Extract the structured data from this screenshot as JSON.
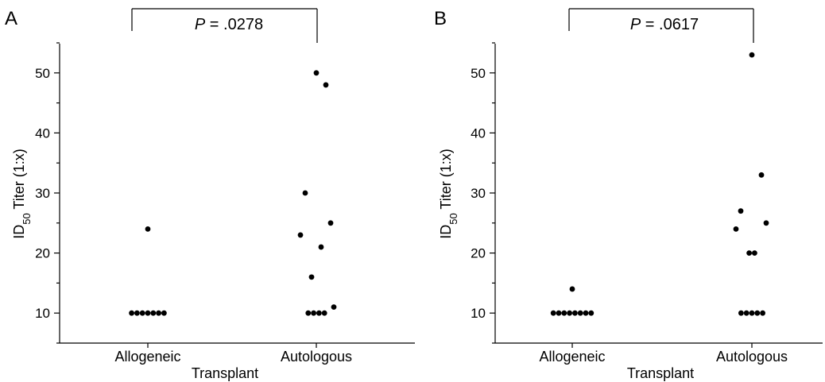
{
  "chart_data": [
    {
      "type": "scatter",
      "panel_label": "A",
      "p_value_label": "P",
      "p_value_text": " = .0278",
      "categories": [
        "Allogeneic",
        "Autologous"
      ],
      "xlabel": "Transplant",
      "ylabel": {
        "main": "ID",
        "sub": "50",
        "rest": " Titer (1:x)"
      },
      "ylim": [
        5,
        55
      ],
      "yticks": [
        10,
        20,
        30,
        40,
        50
      ],
      "grid": false,
      "legend": "none",
      "points": [
        {
          "category": "Allogeneic",
          "y": 10
        },
        {
          "category": "Allogeneic",
          "y": 10
        },
        {
          "category": "Allogeneic",
          "y": 10
        },
        {
          "category": "Allogeneic",
          "y": 10
        },
        {
          "category": "Allogeneic",
          "y": 10
        },
        {
          "category": "Allogeneic",
          "y": 10
        },
        {
          "category": "Allogeneic",
          "y": 10
        },
        {
          "category": "Allogeneic",
          "y": 24
        },
        {
          "category": "Autologous",
          "y": 50
        },
        {
          "category": "Autologous",
          "y": 48
        },
        {
          "category": "Autologous",
          "y": 30
        },
        {
          "category": "Autologous",
          "y": 25
        },
        {
          "category": "Autologous",
          "y": 23
        },
        {
          "category": "Autologous",
          "y": 21
        },
        {
          "category": "Autologous",
          "y": 16
        },
        {
          "category": "Autologous",
          "y": 11
        },
        {
          "category": "Autologous",
          "y": 10
        },
        {
          "category": "Autologous",
          "y": 10
        },
        {
          "category": "Autologous",
          "y": 10
        },
        {
          "category": "Autologous",
          "y": 10
        }
      ]
    },
    {
      "type": "scatter",
      "panel_label": "B",
      "p_value_label": "P",
      "p_value_text": " = .0617",
      "categories": [
        "Allogeneic",
        "Autologous"
      ],
      "xlabel": "Transplant",
      "ylabel": {
        "main": "ID",
        "sub": "50",
        "rest": " Titer (1:x)"
      },
      "ylim": [
        5,
        55
      ],
      "yticks": [
        10,
        20,
        30,
        40,
        50
      ],
      "grid": false,
      "legend": "none",
      "points": [
        {
          "category": "Allogeneic",
          "y": 10
        },
        {
          "category": "Allogeneic",
          "y": 10
        },
        {
          "category": "Allogeneic",
          "y": 10
        },
        {
          "category": "Allogeneic",
          "y": 10
        },
        {
          "category": "Allogeneic",
          "y": 10
        },
        {
          "category": "Allogeneic",
          "y": 10
        },
        {
          "category": "Allogeneic",
          "y": 10
        },
        {
          "category": "Allogeneic",
          "y": 10
        },
        {
          "category": "Allogeneic",
          "y": 14
        },
        {
          "category": "Autologous",
          "y": 53
        },
        {
          "category": "Autologous",
          "y": 33
        },
        {
          "category": "Autologous",
          "y": 27
        },
        {
          "category": "Autologous",
          "y": 25
        },
        {
          "category": "Autologous",
          "y": 24
        },
        {
          "category": "Autologous",
          "y": 20
        },
        {
          "category": "Autologous",
          "y": 20
        },
        {
          "category": "Autologous",
          "y": 10
        },
        {
          "category": "Autologous",
          "y": 10
        },
        {
          "category": "Autologous",
          "y": 10
        },
        {
          "category": "Autologous",
          "y": 10
        },
        {
          "category": "Autologous",
          "y": 10
        }
      ]
    }
  ]
}
